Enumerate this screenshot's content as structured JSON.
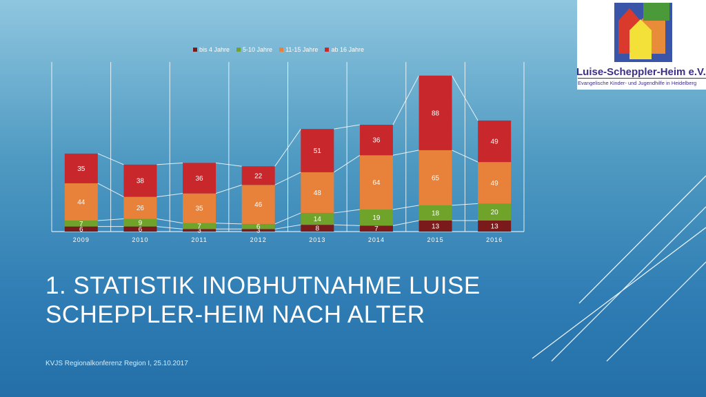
{
  "slide": {
    "title": "1. Statistik Inobhutnahme Luise Scheppler-Heim nach Alter",
    "footer": "KVJS Regionalkonferenz Region I, 25.10.2017"
  },
  "logo": {
    "name": "Luise-Scheppler-Heim e.V.",
    "subtitle": "Evangelische Kinder- und Jugendhilfe in Heidelberg"
  },
  "colors": {
    "bis4": "#7b1a1a",
    "j5_10": "#6fa32a",
    "j11_15": "#e8813a",
    "ab16": "#c8282b"
  },
  "chart_data": {
    "type": "bar",
    "stacked": true,
    "categories": [
      "2009",
      "2010",
      "2011",
      "2012",
      "2013",
      "2014",
      "2015",
      "2016"
    ],
    "series": [
      {
        "name": "bis 4 Jahre",
        "values": [
          6,
          6,
          3,
          3,
          8,
          7,
          13,
          13
        ]
      },
      {
        "name": "5-10 Jahre",
        "values": [
          7,
          9,
          7,
          6,
          14,
          19,
          18,
          20
        ]
      },
      {
        "name": "11-15 Jahre",
        "values": [
          44,
          26,
          35,
          46,
          48,
          64,
          65,
          49
        ]
      },
      {
        "name": "ab 16 Jahre",
        "values": [
          35,
          38,
          36,
          22,
          51,
          36,
          88,
          49
        ]
      }
    ],
    "legend_position": "top",
    "grid": "vertical",
    "ylim": [
      0,
      185
    ]
  }
}
